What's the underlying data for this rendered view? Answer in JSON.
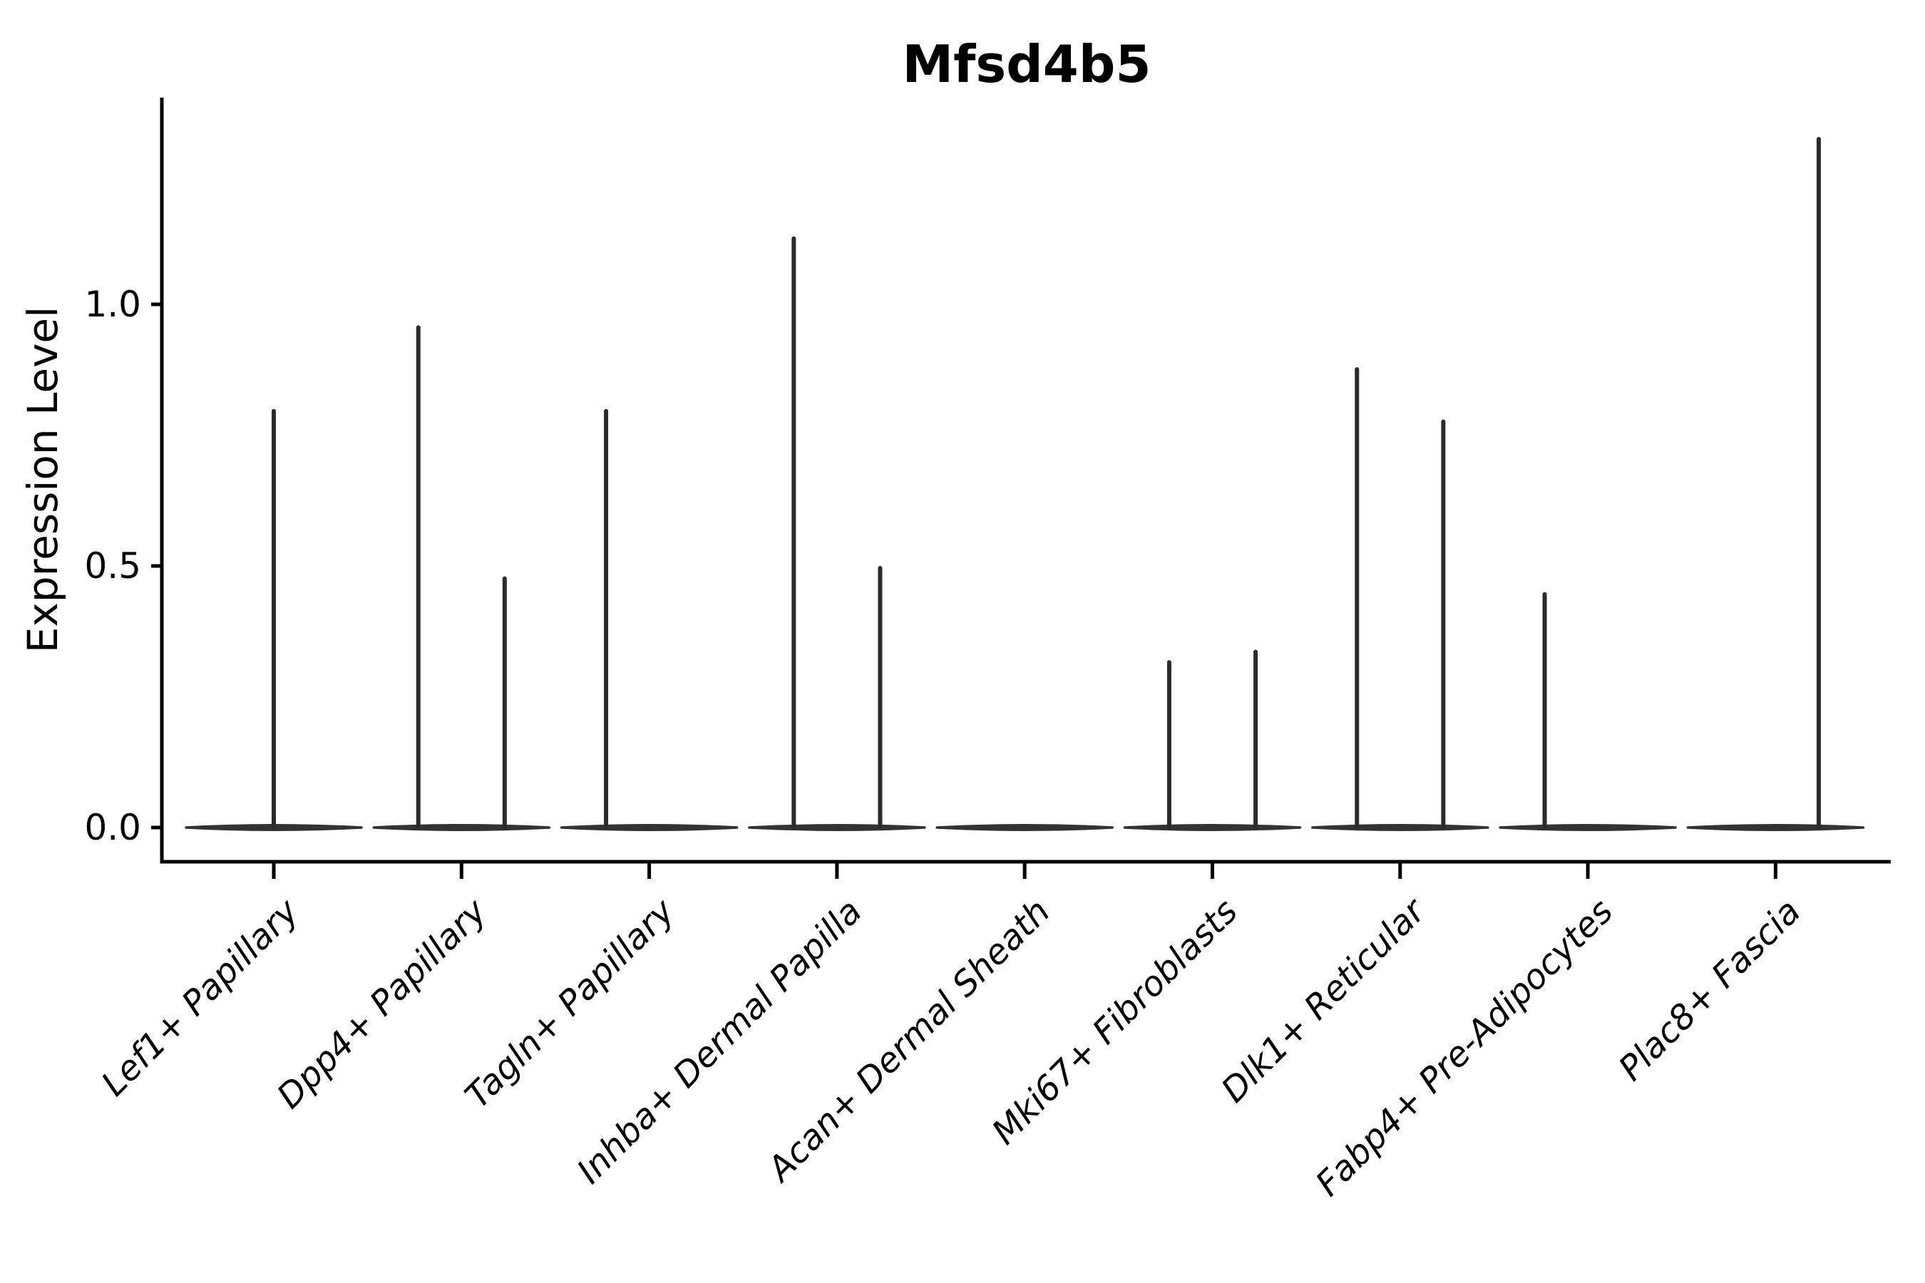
{
  "chart_data": {
    "type": "violin",
    "title": "Mfsd4b5",
    "ylabel": "Expression Level",
    "xlabel": "",
    "grid": false,
    "legend": null,
    "categories": [
      "Lef1+ Papillary",
      "Dpp4+ Papillary",
      "Tagln+ Papillary",
      "Inhba+ Dermal Papilla",
      "Acan+ Dermal Sheath",
      "Mki67+ Fibroblasts",
      "Dlk1+ Reticular",
      "Fabp4+ Pre-Adipocytes",
      "Plac8+ Fascia"
    ],
    "ytick_labels": [
      "0.0",
      "0.5",
      "1.0"
    ],
    "ytick_values": [
      0.0,
      0.5,
      1.0
    ],
    "ylim": [
      -0.065,
      1.395
    ],
    "violins": [
      {
        "category": "Lef1+ Papillary",
        "baseline_value": 0.0,
        "spikes": [
          {
            "x_offset": 0.0,
            "max_value": 0.8
          }
        ]
      },
      {
        "category": "Dpp4+ Papillary",
        "baseline_value": 0.0,
        "spikes": [
          {
            "x_offset": -0.23,
            "max_value": 0.96
          },
          {
            "x_offset": 0.23,
            "max_value": 0.48
          }
        ]
      },
      {
        "category": "Tagln+ Papillary",
        "baseline_value": 0.0,
        "spikes": [
          {
            "x_offset": -0.23,
            "max_value": 0.8
          }
        ]
      },
      {
        "category": "Inhba+ Dermal Papilla",
        "baseline_value": 0.0,
        "spikes": [
          {
            "x_offset": -0.23,
            "max_value": 1.13
          },
          {
            "x_offset": 0.23,
            "max_value": 0.5
          }
        ]
      },
      {
        "category": "Acan+ Dermal Sheath",
        "baseline_value": 0.0,
        "spikes": []
      },
      {
        "category": "Mki67+ Fibroblasts",
        "baseline_value": 0.0,
        "spikes": [
          {
            "x_offset": -0.23,
            "max_value": 0.32
          },
          {
            "x_offset": 0.23,
            "max_value": 0.34
          }
        ]
      },
      {
        "category": "Dlk1+ Reticular",
        "baseline_value": 0.0,
        "spikes": [
          {
            "x_offset": -0.23,
            "max_value": 0.88
          },
          {
            "x_offset": 0.23,
            "max_value": 0.78
          }
        ]
      },
      {
        "category": "Fabp4+ Pre-Adipocytes",
        "baseline_value": 0.0,
        "spikes": [
          {
            "x_offset": -0.23,
            "max_value": 0.45
          }
        ]
      },
      {
        "category": "Plac8+ Fascia",
        "baseline_value": 0.0,
        "spikes": [
          {
            "x_offset": 0.23,
            "max_value": 1.32
          }
        ]
      }
    ],
    "colors": {
      "spike_line": "#2b2b2b",
      "violin_baseline": "#333333",
      "axis": "#000000",
      "background": "#ffffff"
    }
  }
}
